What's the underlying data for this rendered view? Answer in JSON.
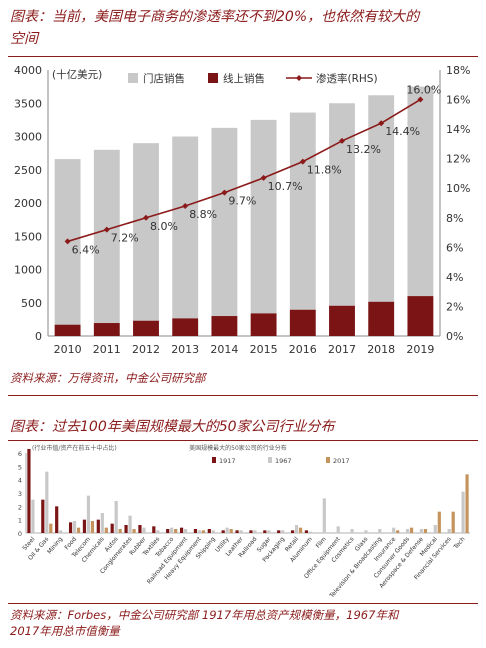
{
  "header1": {
    "title_line1": "图表：当前，美国电子商务的渗透率还不到20%，也依然有较大的",
    "title_line2": "空间",
    "source": "资料来源：万得资讯，中金公司研究部"
  },
  "header2": {
    "title": "图表：过去100年美国规模最大的50家公司行业分布",
    "source_line1": "资料来源：Forbes，中金公司研究部      1917年用总资产规模衡量，1967年和",
    "source_line2": "2017年用总市值衡量"
  },
  "colors": {
    "store": "#c8c8c8",
    "online": "#7b1414",
    "rate": "#8b1a1a",
    "c1917": "#7b1414",
    "c1967": "#c8c8c8",
    "c2017": "#c4945c",
    "accent": "#8b1a1a"
  },
  "chart_data": [
    {
      "type": "bar",
      "categories": [
        "2010",
        "2011",
        "2012",
        "2013",
        "2014",
        "2015",
        "2016",
        "2017",
        "2018",
        "2019"
      ],
      "series": [
        {
          "name": "门店销售",
          "values": [
            2660,
            2800,
            2900,
            3000,
            3130,
            3250,
            3360,
            3500,
            3620,
            3750
          ]
        },
        {
          "name": "线上销售",
          "values": [
            170,
            195,
            230,
            265,
            300,
            340,
            395,
            455,
            515,
            600
          ]
        },
        {
          "name": "渗透率(RHS)",
          "axis": "right",
          "type": "line",
          "values": [
            6.4,
            7.2,
            8.0,
            8.8,
            9.7,
            10.7,
            11.8,
            13.2,
            14.4,
            16.0
          ],
          "labels": [
            "6.4%",
            "7.2%",
            "8.0%",
            "8.8%",
            "9.7%",
            "10.7%",
            "11.8%",
            "13.2%",
            "14.4%",
            "16.0%"
          ]
        }
      ],
      "unit_label": "(十亿美元)",
      "ylim": [
        0,
        4000
      ],
      "yticks": [
        "0",
        "500",
        "1000",
        "1500",
        "2000",
        "2500",
        "3000",
        "3500",
        "4000"
      ],
      "y2lim": [
        0,
        18
      ],
      "y2ticks": [
        "0%",
        "2%",
        "4%",
        "6%",
        "8%",
        "10%",
        "12%",
        "14%",
        "16%",
        "18%"
      ],
      "legend_position": "top"
    },
    {
      "type": "bar",
      "title": "美国规模最大的50家公司的行业分布",
      "ylabel": "(行业市值/资产在前五十中占比)",
      "categories": [
        "Steel",
        "Oil & Gas",
        "Mining",
        "Food",
        "Telecom",
        "Chemicals",
        "Autos",
        "Conglomerates",
        "Rubber",
        "Textiles",
        "Tobacco",
        "Railroad Equipment",
        "Heavy Equipment",
        "Shipping",
        "Utility",
        "Leather",
        "Railroad",
        "Sugar",
        "Packaging",
        "Retail",
        "Aluminum",
        "Film",
        "Office Equipment",
        "Cosmetics",
        "Glass",
        "Television & Broadcasting",
        "Insurance",
        "Consumer Goods",
        "Aerospace & Defense",
        "Medical",
        "Financial Services",
        "Tech"
      ],
      "series": [
        {
          "name": "1917",
          "values": [
            6.3,
            2.5,
            2.0,
            0.8,
            1.0,
            1.0,
            0.7,
            0.6,
            0.6,
            0.5,
            0.3,
            0.4,
            0.3,
            0.3,
            0.2,
            0.2,
            0.2,
            0.2,
            0.2,
            0.2,
            0.2,
            0,
            0,
            0,
            0,
            0,
            0,
            0,
            0,
            0,
            0,
            0
          ]
        },
        {
          "name": "1967",
          "values": [
            2.5,
            4.6,
            0.2,
            0.9,
            2.8,
            1.5,
            2.4,
            1.3,
            0.4,
            0.2,
            0.4,
            0.3,
            0.2,
            0.2,
            0.4,
            0.2,
            0.2,
            0.2,
            0.2,
            0.6,
            0.1,
            2.6,
            0.5,
            0.3,
            0.2,
            0.3,
            0.4,
            0.3,
            0.3,
            0.6,
            0.3,
            3.1
          ]
        },
        {
          "name": "2017",
          "values": [
            0,
            0.7,
            0,
            0.4,
            0.9,
            0.4,
            0.3,
            0.3,
            0,
            0,
            0.3,
            0,
            0.2,
            0,
            0.3,
            0,
            0,
            0,
            0,
            0.4,
            0,
            0,
            0,
            0,
            0,
            0,
            0.2,
            0.4,
            0.3,
            1.6,
            1.6,
            4.4
          ]
        }
      ],
      "ylim": [
        0,
        6
      ],
      "yticks": [
        "0",
        "1",
        "2",
        "3",
        "4",
        "5",
        "6"
      ],
      "legend_position": "top-right"
    }
  ]
}
